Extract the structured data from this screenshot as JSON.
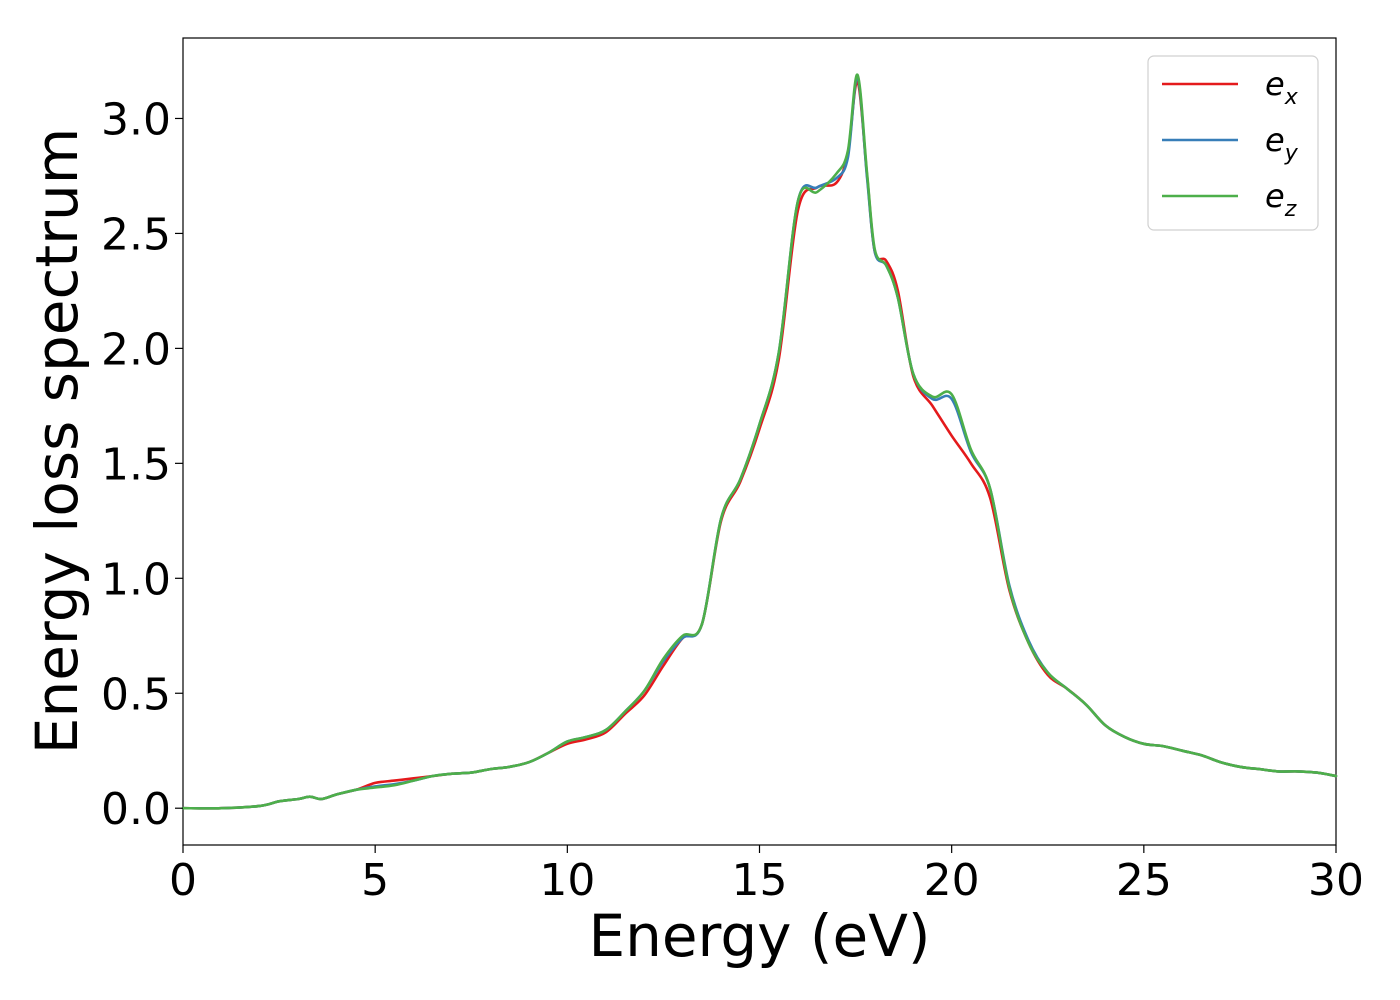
{
  "chart_data": {
    "type": "line",
    "xlabel": "Energy (eV)",
    "ylabel": "Energy loss spectrum",
    "xlim": [
      0,
      30
    ],
    "ylim": [
      -0.16,
      3.35
    ],
    "xticks": [
      "0",
      "5",
      "10",
      "15",
      "20",
      "25",
      "30"
    ],
    "yticks": [
      "0.0",
      "0.5",
      "1.0",
      "1.5",
      "2.0",
      "2.5",
      "3.0"
    ],
    "grid": false,
    "legend_position": "top-right",
    "series": [
      {
        "name": "e",
        "subscript": "x",
        "color": "#e41a1c",
        "x": [
          0,
          1,
          2,
          2.5,
          3,
          3.3,
          3.6,
          4,
          4.5,
          5,
          5.5,
          6,
          6.5,
          7,
          7.5,
          8,
          8.5,
          9,
          9.5,
          10,
          10.5,
          11,
          11.5,
          12,
          12.5,
          13,
          13.5,
          14,
          14.5,
          15,
          15.5,
          16,
          16.5,
          17,
          17.3,
          17.55,
          17.8,
          18,
          18.3,
          18.6,
          19,
          19.5,
          20,
          20.5,
          21,
          21.5,
          22,
          22.5,
          23,
          23.5,
          24,
          24.5,
          25,
          25.5,
          26,
          26.5,
          27,
          27.5,
          28,
          28.5,
          29,
          29.5,
          30
        ],
        "y": [
          0,
          0,
          0.01,
          0.03,
          0.04,
          0.05,
          0.04,
          0.06,
          0.08,
          0.11,
          0.12,
          0.13,
          0.14,
          0.15,
          0.155,
          0.17,
          0.18,
          0.2,
          0.24,
          0.28,
          0.3,
          0.33,
          0.41,
          0.49,
          0.62,
          0.74,
          0.8,
          1.25,
          1.42,
          1.65,
          1.95,
          2.6,
          2.7,
          2.72,
          2.85,
          3.16,
          2.75,
          2.42,
          2.38,
          2.25,
          1.88,
          1.75,
          1.62,
          1.5,
          1.35,
          0.95,
          0.72,
          0.58,
          0.52,
          0.45,
          0.36,
          0.31,
          0.28,
          0.27,
          0.25,
          0.23,
          0.2,
          0.18,
          0.17,
          0.16,
          0.16,
          0.155,
          0.14
        ]
      },
      {
        "name": "e",
        "subscript": "y",
        "color": "#377eb8",
        "x": [
          0,
          1,
          2,
          2.5,
          3,
          3.3,
          3.6,
          4,
          4.5,
          5,
          5.5,
          6,
          6.5,
          7,
          7.5,
          8,
          8.5,
          9,
          9.5,
          10,
          10.5,
          11,
          11.5,
          12,
          12.5,
          13,
          13.5,
          14,
          14.5,
          15,
          15.5,
          16,
          16.5,
          17,
          17.3,
          17.55,
          17.8,
          18,
          18.3,
          18.6,
          19,
          19.5,
          20,
          20.5,
          21,
          21.5,
          22,
          22.5,
          23,
          23.5,
          24,
          24.5,
          25,
          25.5,
          26,
          26.5,
          27,
          27.5,
          28,
          28.5,
          29,
          29.5,
          30
        ],
        "y": [
          0,
          0,
          0.01,
          0.03,
          0.04,
          0.05,
          0.04,
          0.06,
          0.08,
          0.095,
          0.105,
          0.12,
          0.14,
          0.15,
          0.155,
          0.17,
          0.18,
          0.2,
          0.24,
          0.29,
          0.31,
          0.34,
          0.42,
          0.51,
          0.64,
          0.74,
          0.8,
          1.26,
          1.43,
          1.67,
          1.98,
          2.64,
          2.7,
          2.74,
          2.83,
          3.18,
          2.74,
          2.42,
          2.36,
          2.22,
          1.89,
          1.78,
          1.78,
          1.55,
          1.39,
          0.97,
          0.73,
          0.59,
          0.52,
          0.45,
          0.36,
          0.31,
          0.28,
          0.27,
          0.25,
          0.23,
          0.2,
          0.18,
          0.17,
          0.16,
          0.16,
          0.155,
          0.14
        ]
      },
      {
        "name": "e",
        "subscript": "z",
        "color": "#4daf4a",
        "x": [
          0,
          1,
          2,
          2.5,
          3,
          3.3,
          3.6,
          4,
          4.5,
          5,
          5.5,
          6,
          6.5,
          7,
          7.5,
          8,
          8.5,
          9,
          9.5,
          10,
          10.5,
          11,
          11.5,
          12,
          12.5,
          13,
          13.5,
          14,
          14.5,
          15,
          15.5,
          16,
          16.5,
          17,
          17.3,
          17.55,
          17.8,
          18,
          18.3,
          18.6,
          19,
          19.5,
          20,
          20.5,
          21,
          21.5,
          22,
          22.5,
          23,
          23.5,
          24,
          24.5,
          25,
          25.5,
          26,
          26.5,
          27,
          27.5,
          28,
          28.5,
          29,
          29.5,
          30
        ],
        "y": [
          0,
          0,
          0.01,
          0.03,
          0.04,
          0.05,
          0.04,
          0.06,
          0.08,
          0.09,
          0.1,
          0.12,
          0.14,
          0.15,
          0.155,
          0.17,
          0.18,
          0.2,
          0.24,
          0.29,
          0.31,
          0.34,
          0.42,
          0.51,
          0.65,
          0.75,
          0.8,
          1.26,
          1.43,
          1.67,
          1.98,
          2.64,
          2.68,
          2.76,
          2.86,
          3.19,
          2.76,
          2.43,
          2.36,
          2.22,
          1.89,
          1.79,
          1.8,
          1.56,
          1.39,
          0.96,
          0.72,
          0.59,
          0.52,
          0.45,
          0.36,
          0.31,
          0.28,
          0.27,
          0.25,
          0.23,
          0.2,
          0.18,
          0.17,
          0.16,
          0.16,
          0.155,
          0.14
        ]
      }
    ]
  }
}
